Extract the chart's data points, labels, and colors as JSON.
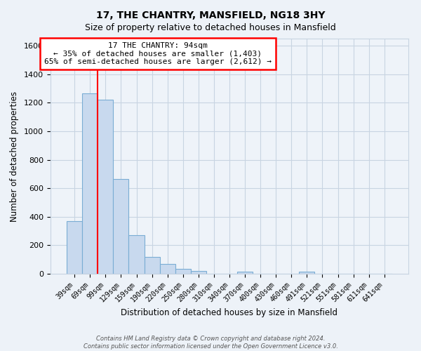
{
  "title": "17, THE CHANTRY, MANSFIELD, NG18 3HY",
  "subtitle": "Size of property relative to detached houses in Mansfield",
  "xlabel": "Distribution of detached houses by size in Mansfield",
  "ylabel": "Number of detached properties",
  "bar_labels": [
    "39sqm",
    "69sqm",
    "99sqm",
    "129sqm",
    "159sqm",
    "190sqm",
    "220sqm",
    "250sqm",
    "280sqm",
    "310sqm",
    "340sqm",
    "370sqm",
    "400sqm",
    "430sqm",
    "460sqm",
    "491sqm",
    "521sqm",
    "551sqm",
    "581sqm",
    "611sqm",
    "641sqm"
  ],
  "bar_values": [
    370,
    1265,
    1220,
    665,
    270,
    120,
    70,
    35,
    20,
    0,
    0,
    15,
    0,
    0,
    0,
    15,
    0,
    0,
    0,
    0,
    0
  ],
  "bar_color": "#c8d9ee",
  "bar_edge_color": "#7aadd4",
  "red_line_x": 1.5,
  "annotation_title": "17 THE CHANTRY: 94sqm",
  "annotation_line1": "← 35% of detached houses are smaller (1,403)",
  "annotation_line2": "65% of semi-detached houses are larger (2,612) →",
  "ylim": [
    0,
    1650
  ],
  "yticks": [
    0,
    200,
    400,
    600,
    800,
    1000,
    1200,
    1400,
    1600
  ],
  "footer1": "Contains HM Land Registry data © Crown copyright and database right 2024.",
  "footer2": "Contains public sector information licensed under the Open Government Licence v3.0.",
  "background_color": "#edf2f8",
  "plot_background_color": "#eef3f9",
  "grid_color": "#c8d4e2"
}
